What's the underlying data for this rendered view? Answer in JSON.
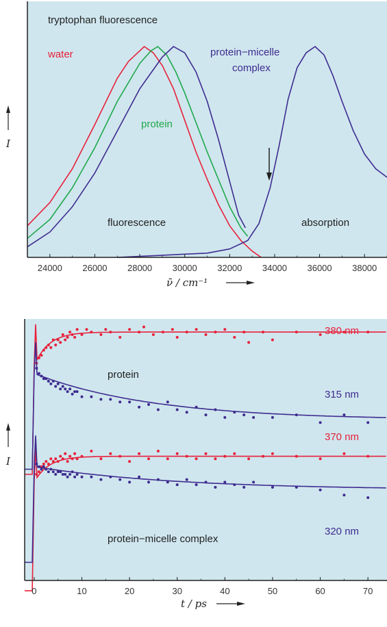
{
  "colors": {
    "panel_bg": "#cfe6ee",
    "water": "#e8203a",
    "protein": "#1fa84a",
    "complex": "#3e2b8f",
    "axis": "#222222",
    "text": "#222222"
  },
  "chart_data": [
    {
      "type": "line",
      "title": "tryptophan fluorescence",
      "xlabel": "ν̄ / cm⁻¹",
      "ylabel": "I",
      "xlim": [
        23000,
        39000
      ],
      "ylim": [
        0,
        1.02
      ],
      "x_ticks": [
        "24000",
        "26000",
        "28000",
        "30000",
        "32000",
        "34000",
        "36000",
        "38000"
      ],
      "grid": false,
      "annotations": {
        "fluorescence": "fluorescence",
        "absorption": "absorption",
        "water": "water",
        "protein": "protein",
        "complex_line1": "protein−micelle",
        "complex_line2": "complex"
      },
      "series": [
        {
          "name": "water",
          "x": [
            23000,
            24000,
            25000,
            26000,
            27000,
            27500,
            28000,
            28200,
            28600,
            29000,
            29500,
            30000,
            30500,
            31000,
            31500,
            32000,
            32500,
            33000,
            33400
          ],
          "y": [
            0.15,
            0.26,
            0.42,
            0.63,
            0.85,
            0.93,
            0.98,
            1.0,
            0.97,
            0.91,
            0.8,
            0.65,
            0.5,
            0.37,
            0.25,
            0.15,
            0.08,
            0.03,
            0.0
          ]
        },
        {
          "name": "protein",
          "x": [
            23000,
            24000,
            25000,
            26000,
            27000,
            28000,
            28500,
            28800,
            29200,
            29600,
            30000,
            30500,
            31000,
            31500,
            32000,
            32500,
            32800
          ],
          "y": [
            0.09,
            0.18,
            0.33,
            0.52,
            0.74,
            0.92,
            0.98,
            1.0,
            0.96,
            0.88,
            0.78,
            0.64,
            0.5,
            0.37,
            0.24,
            0.14,
            0.1
          ]
        },
        {
          "name": "protein−micelle complex (fluorescence)",
          "x": [
            23000,
            24000,
            25000,
            26000,
            27000,
            28000,
            29000,
            29500,
            30000,
            30500,
            31000,
            31500,
            32000,
            32400,
            32700
          ],
          "y": [
            0.05,
            0.12,
            0.24,
            0.4,
            0.6,
            0.8,
            0.95,
            1.0,
            0.97,
            0.88,
            0.74,
            0.56,
            0.36,
            0.2,
            0.14
          ]
        },
        {
          "name": "protein−micelle complex (absorption)",
          "x": [
            27000,
            29000,
            31000,
            32000,
            32800,
            33300,
            33800,
            34200,
            34600,
            35000,
            35400,
            35800,
            36200,
            36600,
            37000,
            37500,
            38000,
            38500,
            39000
          ],
          "y": [
            0.0,
            0.01,
            0.02,
            0.04,
            0.08,
            0.16,
            0.33,
            0.53,
            0.75,
            0.9,
            0.97,
            1.0,
            0.96,
            0.86,
            0.74,
            0.6,
            0.49,
            0.42,
            0.38
          ]
        }
      ]
    },
    {
      "type": "scatter",
      "xlabel": "t / ps",
      "ylabel": "I",
      "xlim": [
        -2,
        74
      ],
      "ylim": [
        0,
        1
      ],
      "x_ticks": [
        "0",
        "10",
        "20",
        "30",
        "40",
        "50",
        "60",
        "70"
      ],
      "grid": false,
      "annotations": {
        "protein": "protein",
        "complex": "protein−micelle complex",
        "nm380": "380 nm",
        "nm315": "315 nm",
        "nm370": "370 nm",
        "nm320": "320 nm"
      },
      "series": [
        {
          "name": "380 nm",
          "baseline": 0.83,
          "plateau": 0.96,
          "rise_tau_ps": 3.0,
          "points_x": [
            0.5,
            1,
            1.5,
            2,
            2.5,
            3,
            3.5,
            4,
            4.5,
            5,
            5.5,
            6,
            6.5,
            7,
            7.5,
            8,
            8.5,
            9,
            10,
            11,
            12,
            14,
            15,
            16,
            18,
            20,
            22,
            23,
            25,
            27,
            29,
            30,
            32,
            34,
            36,
            38,
            40,
            42,
            44,
            45,
            48,
            50,
            55,
            60,
            65,
            70
          ],
          "points_y": [
            0.84,
            0.86,
            0.87,
            0.89,
            0.9,
            0.91,
            0.9,
            0.93,
            0.91,
            0.93,
            0.92,
            0.95,
            0.93,
            0.94,
            0.96,
            0.95,
            0.94,
            0.97,
            0.95,
            0.97,
            0.96,
            0.95,
            0.97,
            0.96,
            0.94,
            0.97,
            0.96,
            0.98,
            0.95,
            0.96,
            0.97,
            0.94,
            0.96,
            0.97,
            0.95,
            0.96,
            0.97,
            0.94,
            0.96,
            0.92,
            0.96,
            0.93,
            0.96,
            0.95,
            0.96,
            0.96
          ]
        },
        {
          "name": "315 nm",
          "start": 0.8,
          "end": 0.62,
          "decay_tau_ps": 25,
          "points_x": [
            0.5,
            1,
            1.5,
            2,
            2.5,
            3,
            3.5,
            4,
            4.5,
            5,
            5.5,
            6,
            6.5,
            7,
            7.5,
            8,
            8.5,
            9,
            10,
            12,
            14,
            16,
            18,
            20,
            22,
            24,
            26,
            28,
            30,
            32,
            34,
            36,
            38,
            40,
            42,
            44,
            46,
            50,
            55,
            60,
            65,
            70
          ],
          "points_y": [
            0.82,
            0.8,
            0.79,
            0.78,
            0.78,
            0.77,
            0.76,
            0.77,
            0.75,
            0.76,
            0.74,
            0.75,
            0.74,
            0.73,
            0.74,
            0.72,
            0.73,
            0.73,
            0.71,
            0.71,
            0.7,
            0.7,
            0.69,
            0.69,
            0.67,
            0.68,
            0.66,
            0.69,
            0.66,
            0.65,
            0.67,
            0.64,
            0.66,
            0.63,
            0.65,
            0.64,
            0.63,
            0.63,
            0.64,
            0.61,
            0.64,
            0.61
          ]
        },
        {
          "name": "370 nm",
          "baseline": 0.38,
          "plateau": 0.48,
          "rise_tau_ps": 3.0,
          "points_x": [
            0.5,
            1,
            1.5,
            2,
            2.5,
            3,
            3.5,
            4,
            4.5,
            5,
            5.5,
            6,
            6.5,
            7,
            7.5,
            8,
            8.5,
            9,
            10,
            12,
            14,
            16,
            18,
            20,
            22,
            24,
            26,
            28,
            30,
            32,
            34,
            36,
            38,
            40,
            42,
            45,
            48,
            50,
            55,
            60,
            65,
            70
          ],
          "points_y": [
            0.41,
            0.42,
            0.44,
            0.45,
            0.46,
            0.45,
            0.47,
            0.46,
            0.47,
            0.46,
            0.48,
            0.47,
            0.49,
            0.46,
            0.48,
            0.47,
            0.49,
            0.47,
            0.48,
            0.5,
            0.47,
            0.49,
            0.48,
            0.46,
            0.49,
            0.47,
            0.5,
            0.47,
            0.49,
            0.48,
            0.47,
            0.49,
            0.47,
            0.48,
            0.49,
            0.47,
            0.48,
            0.49,
            0.48,
            0.47,
            0.49,
            0.48
          ]
        },
        {
          "name": "320 nm",
          "start": 0.44,
          "end": 0.35,
          "decay_tau_ps": 30,
          "points_x": [
            0.5,
            1,
            1.5,
            2,
            2.5,
            3,
            3.5,
            4,
            4.5,
            5,
            5.5,
            6,
            6.5,
            7,
            7.5,
            8,
            8.5,
            9,
            10,
            12,
            14,
            16,
            18,
            20,
            22,
            24,
            26,
            28,
            30,
            32,
            34,
            36,
            38,
            40,
            42,
            44,
            46,
            50,
            55,
            60,
            65,
            70
          ],
          "points_y": [
            0.45,
            0.44,
            0.43,
            0.44,
            0.43,
            0.42,
            0.43,
            0.42,
            0.41,
            0.42,
            0.42,
            0.41,
            0.41,
            0.4,
            0.41,
            0.42,
            0.4,
            0.41,
            0.4,
            0.4,
            0.39,
            0.4,
            0.39,
            0.38,
            0.4,
            0.38,
            0.39,
            0.38,
            0.37,
            0.39,
            0.37,
            0.38,
            0.36,
            0.38,
            0.37,
            0.36,
            0.38,
            0.36,
            0.36,
            0.35,
            0.33,
            0.32
          ]
        }
      ]
    }
  ]
}
